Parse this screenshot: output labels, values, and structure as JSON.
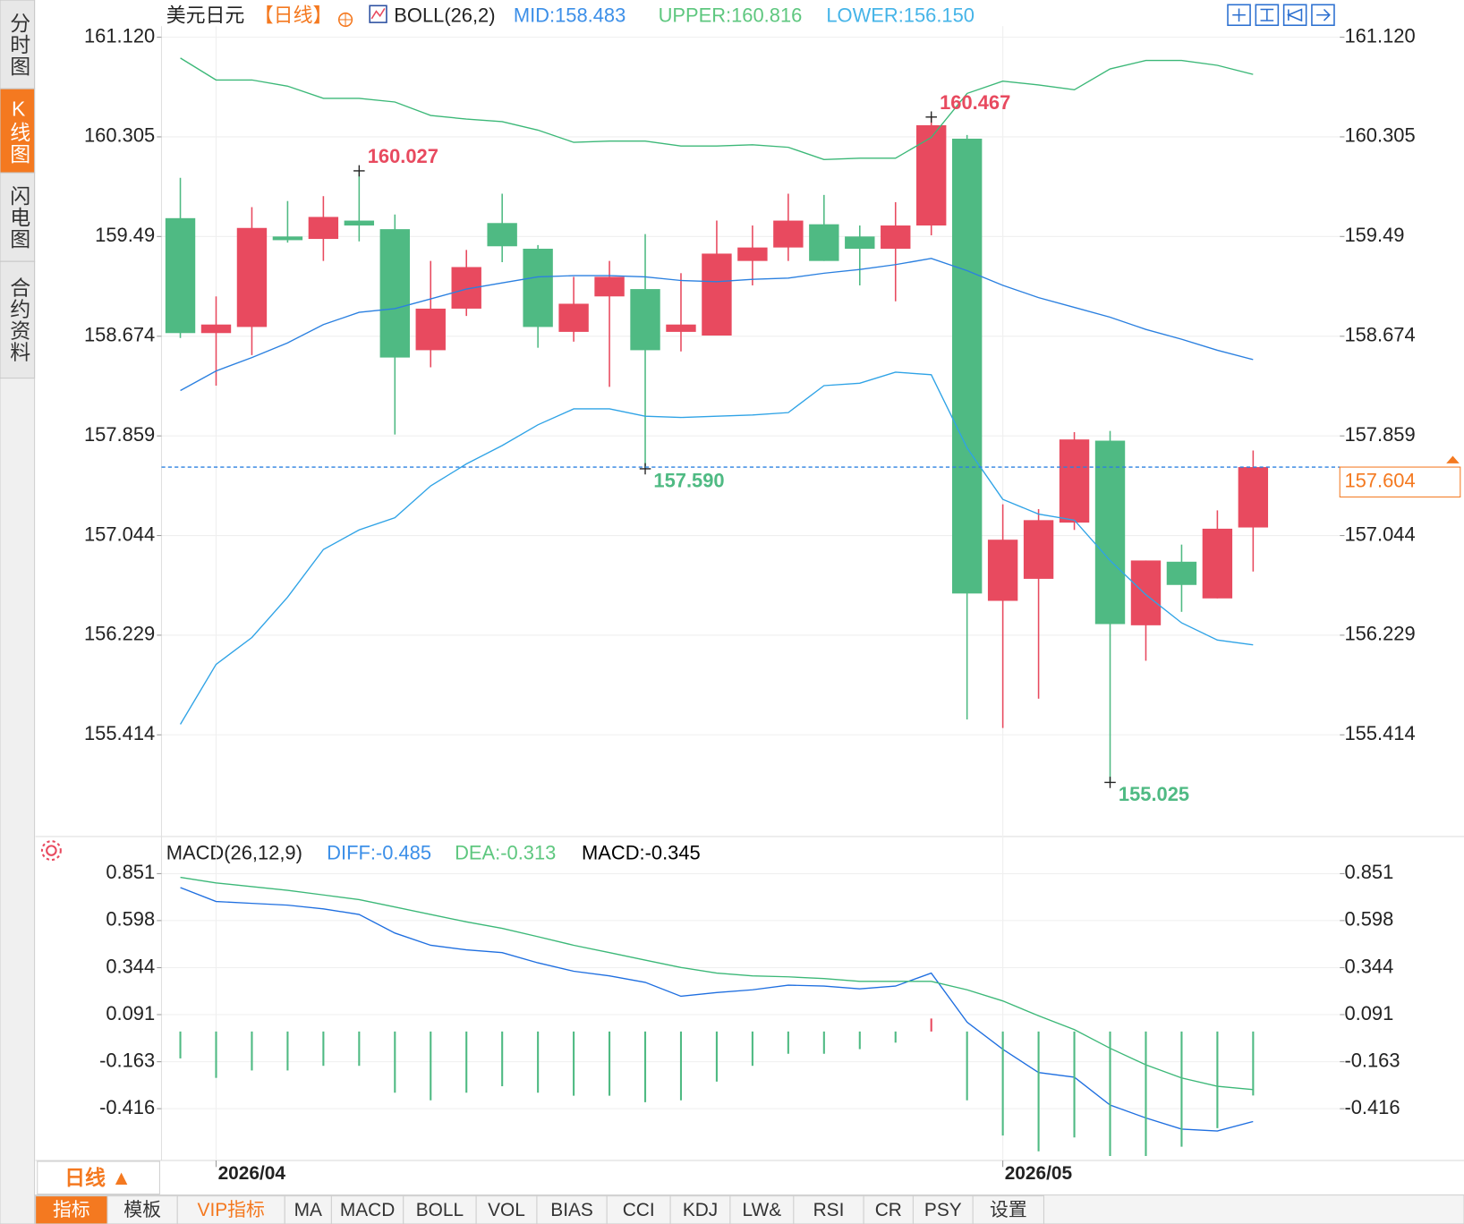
{
  "ui": {
    "side_tabs": [
      "分时图",
      "K线图",
      "闪电图",
      "合约资料"
    ],
    "period_button": "日线 ▲",
    "bottom_tabs": [
      "指标",
      "模板",
      "VIP指标",
      "MA",
      "MACD",
      "BOLL",
      "VOL",
      "BIAS",
      "CCI",
      "KDJ",
      "LW&",
      "RSI",
      "CR",
      "PSY",
      "设置"
    ]
  },
  "chart_data": [
    {
      "type": "candlestick",
      "title": "美元日元",
      "period": "【日线】",
      "indicator": "BOLL(26,2)",
      "categories": [
        null,
        "2026/04",
        null,
        null,
        null,
        null,
        null,
        null,
        null,
        null,
        null,
        null,
        null,
        null,
        null,
        null,
        null,
        null,
        null,
        null,
        null,
        null,
        null,
        "2026/05",
        null,
        null,
        null,
        null,
        null,
        null,
        null
      ],
      "open": [
        159.64,
        158.7,
        158.75,
        159.49,
        159.47,
        159.62,
        159.55,
        158.56,
        158.9,
        159.6,
        159.39,
        158.71,
        159.0,
        159.06,
        158.71,
        158.68,
        159.29,
        159.4,
        159.59,
        159.49,
        159.39,
        159.58,
        160.29,
        156.51,
        156.69,
        157.15,
        157.82,
        156.31,
        156.83,
        156.53,
        157.11
      ],
      "high": [
        159.97,
        159.0,
        159.73,
        159.78,
        159.82,
        160.027,
        159.67,
        159.29,
        159.38,
        159.84,
        159.42,
        159.16,
        159.29,
        159.51,
        159.19,
        159.62,
        159.58,
        159.84,
        159.83,
        159.58,
        159.77,
        160.467,
        160.32,
        157.3,
        157.26,
        157.89,
        157.9,
        156.84,
        156.97,
        157.25,
        157.74
      ],
      "low": [
        158.66,
        158.27,
        158.52,
        159.44,
        159.29,
        159.45,
        157.87,
        158.42,
        158.84,
        159.28,
        158.58,
        158.63,
        158.26,
        157.59,
        158.55,
        158.68,
        159.09,
        159.29,
        159.29,
        159.09,
        158.96,
        159.5,
        155.54,
        155.47,
        155.71,
        157.09,
        155.025,
        156.02,
        156.42,
        156.53,
        156.75
      ],
      "close": [
        158.7,
        158.77,
        159.56,
        159.46,
        159.65,
        159.58,
        158.5,
        158.9,
        159.24,
        159.41,
        158.75,
        158.94,
        159.16,
        158.56,
        158.77,
        159.35,
        159.4,
        159.62,
        159.29,
        159.39,
        159.58,
        160.4,
        156.57,
        157.01,
        157.17,
        157.83,
        156.32,
        156.84,
        156.64,
        157.1,
        157.604
      ],
      "up_color": "#e84a5f",
      "down_color": "#4fba83",
      "series": [
        {
          "name": "MID:158.483",
          "color": "#2b80e0",
          "label_color": "#3c8fe8",
          "values": [
            158.23,
            158.39,
            158.5,
            158.62,
            158.77,
            158.87,
            158.9,
            158.98,
            159.06,
            159.11,
            159.16,
            159.17,
            159.17,
            159.16,
            159.13,
            159.12,
            159.14,
            159.15,
            159.19,
            159.22,
            159.26,
            159.31,
            159.21,
            159.09,
            158.99,
            158.91,
            158.83,
            158.73,
            158.65,
            158.56,
            158.483
          ]
        },
        {
          "name": "UPPER:160.816",
          "color": "#3cb878",
          "label_color": "#5ec77f",
          "values": [
            160.95,
            160.77,
            160.77,
            160.72,
            160.62,
            160.62,
            160.59,
            160.48,
            160.45,
            160.43,
            160.36,
            160.26,
            160.27,
            160.27,
            160.23,
            160.23,
            160.24,
            160.22,
            160.12,
            160.13,
            160.13,
            160.3,
            160.66,
            160.76,
            160.73,
            160.69,
            160.86,
            160.93,
            160.93,
            160.89,
            160.816
          ]
        },
        {
          "name": "LOWER:156.150",
          "color": "#2fa3e6",
          "label_color": "#45b4e8",
          "values": [
            155.5,
            155.99,
            156.21,
            156.54,
            156.93,
            157.09,
            157.19,
            157.45,
            157.63,
            157.78,
            157.95,
            158.08,
            158.08,
            158.02,
            158.01,
            158.02,
            158.03,
            158.05,
            158.27,
            158.29,
            158.38,
            158.36,
            157.76,
            157.34,
            157.22,
            157.17,
            156.84,
            156.56,
            156.33,
            156.19,
            156.15
          ]
        }
      ],
      "annotations": [
        {
          "value": 160.027
        },
        {
          "value": 160.467
        },
        {
          "value": 157.59,
          "label": "157.590"
        },
        {
          "value": 155.025
        }
      ],
      "last_price": 157.604,
      "last_price_color": "#f47920",
      "ylim": [
        154.59,
        161.21
      ],
      "yticks": [
        {
          "value": 161.12,
          "label": "161.120"
        },
        160.305,
        159.49,
        158.674,
        157.859,
        157.044,
        156.229,
        155.414
      ],
      "grid": true
    },
    {
      "type": "macd",
      "title": "MACD(26,12,9)",
      "series": [
        {
          "name": "DIFF:-0.485",
          "kind": "line",
          "color": "#1f6fe0",
          "label_color": "#3c8fe8",
          "values": [
            0.776,
            0.701,
            0.691,
            0.681,
            0.661,
            0.631,
            0.531,
            0.465,
            0.44,
            0.425,
            0.37,
            0.325,
            0.3,
            0.265,
            0.19,
            0.21,
            0.225,
            0.25,
            0.245,
            0.23,
            0.245,
            0.315,
            0.05,
            -0.096,
            -0.221,
            -0.246,
            -0.396,
            -0.466,
            -0.526,
            -0.536,
            -0.485
          ]
        },
        {
          "name": "DEA:-0.313",
          "kind": "line",
          "color": "#3cb878",
          "label_color": "#5ec77f",
          "values": [
            0.831,
            0.801,
            0.781,
            0.761,
            0.736,
            0.711,
            0.671,
            0.631,
            0.591,
            0.556,
            0.511,
            0.465,
            0.425,
            0.385,
            0.345,
            0.315,
            0.3,
            0.295,
            0.285,
            0.27,
            0.27,
            0.27,
            0.225,
            0.165,
            0.085,
            0.01,
            -0.09,
            -0.18,
            -0.25,
            -0.295,
            -0.313
          ]
        },
        {
          "name": "MACD:-0.345",
          "kind": "bar",
          "color": "#45b4e8",
          "up_color": "#e84a5f",
          "down_color": "#4fba83",
          "values": [
            -0.145,
            -0.25,
            -0.21,
            -0.21,
            -0.185,
            -0.185,
            -0.33,
            -0.371,
            -0.33,
            -0.295,
            -0.33,
            -0.346,
            -0.346,
            -0.381,
            -0.371,
            -0.27,
            -0.185,
            -0.12,
            -0.12,
            -0.095,
            -0.06,
            0.07,
            -0.371,
            -0.561,
            -0.646,
            -0.571,
            -0.671,
            -0.671,
            -0.621,
            -0.521,
            -0.345
          ]
        }
      ],
      "ylim": [
        -0.68,
        0.88
      ],
      "yticks": [
        0.851,
        0.598,
        0.344,
        0.091,
        -0.163,
        -0.416
      ],
      "grid": true
    }
  ]
}
